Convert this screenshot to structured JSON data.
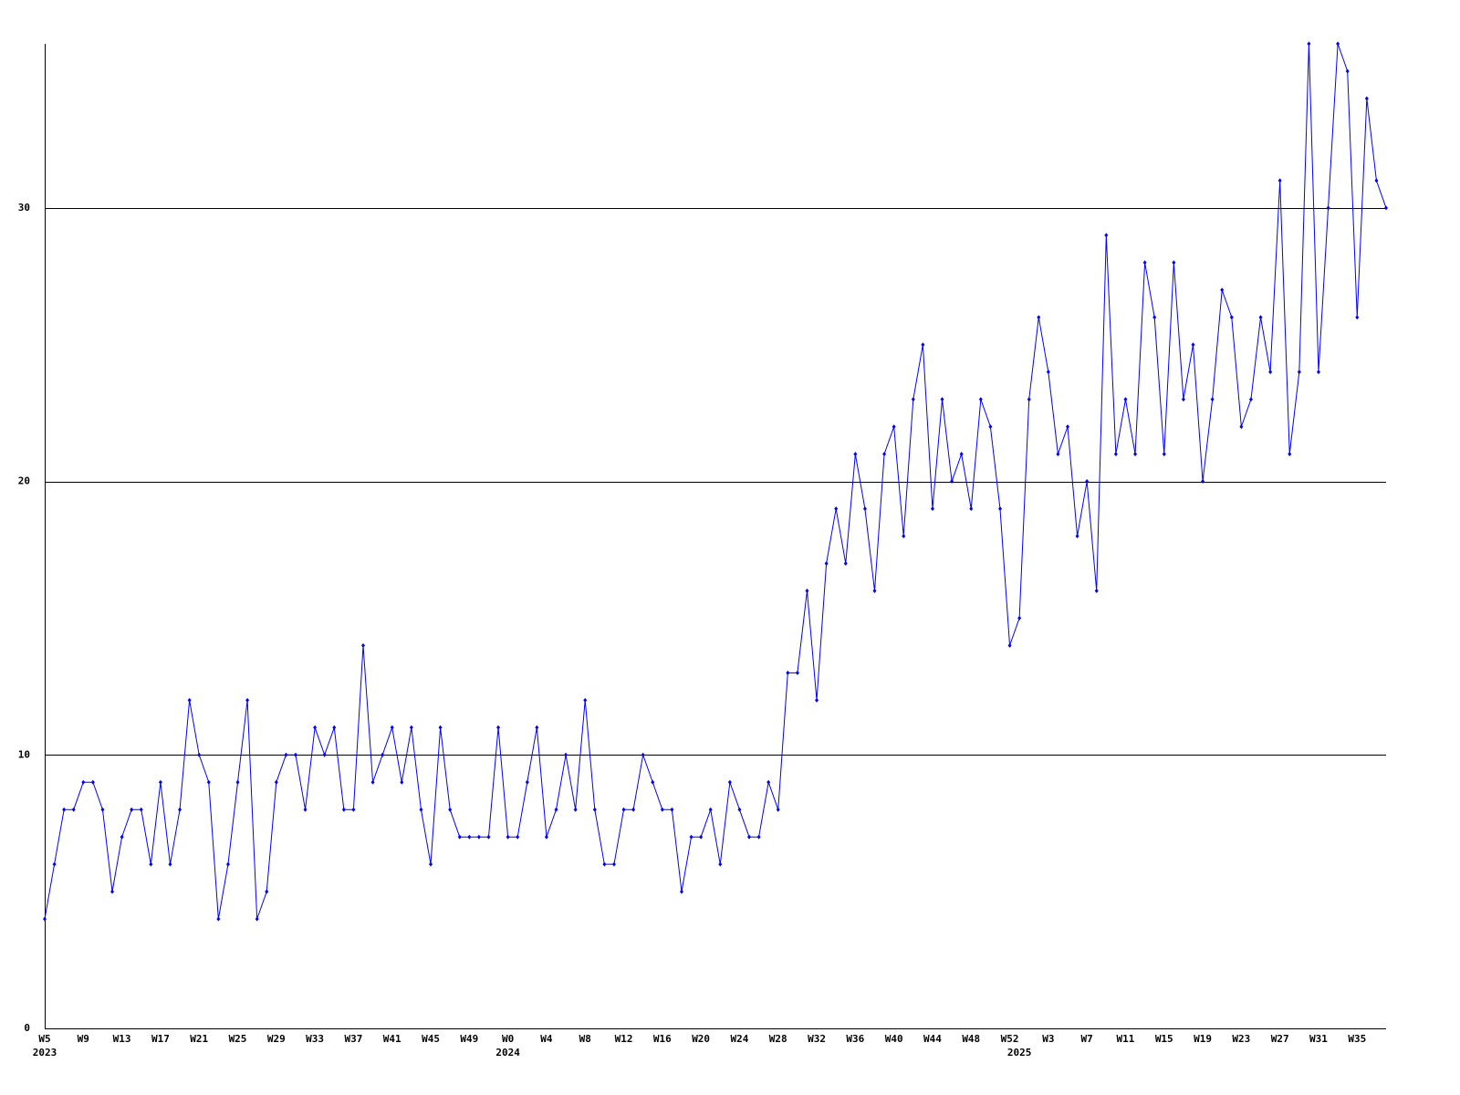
{
  "chart_data": {
    "type": "line",
    "color": "#0000ff",
    "grid": true,
    "ylim": [
      0,
      36
    ],
    "yticks": [
      0,
      10,
      20,
      30
    ],
    "categories": [
      "W5",
      null,
      null,
      null,
      "W9",
      null,
      null,
      null,
      "W13",
      null,
      null,
      null,
      "W17",
      null,
      null,
      null,
      "W21",
      null,
      null,
      null,
      "W25",
      null,
      null,
      null,
      "W29",
      null,
      null,
      null,
      "W33",
      null,
      null,
      null,
      "W37",
      null,
      null,
      null,
      "W41",
      null,
      null,
      null,
      "W45",
      null,
      null,
      null,
      "W49",
      null,
      null,
      null,
      "W0",
      null,
      null,
      null,
      "W4",
      null,
      null,
      null,
      "W8",
      null,
      null,
      null,
      "W12",
      null,
      null,
      null,
      "W16",
      null,
      null,
      null,
      "W20",
      null,
      null,
      null,
      "W24",
      null,
      null,
      null,
      "W28",
      null,
      null,
      null,
      "W32",
      null,
      null,
      null,
      "W36",
      null,
      null,
      null,
      "W40",
      null,
      null,
      null,
      "W44",
      null,
      null,
      null,
      "W48",
      null,
      null,
      null,
      "W52",
      null,
      null,
      null,
      "W3",
      null,
      null,
      null,
      "W7",
      null,
      null,
      null,
      "W11",
      null,
      null,
      null,
      "W15",
      null,
      null,
      null,
      "W19",
      null,
      null,
      null,
      "W23",
      null,
      null,
      null,
      "W27",
      null,
      null,
      null,
      "W31",
      null,
      null,
      null,
      "W35",
      null,
      null,
      null
    ],
    "years": [
      "2023",
      null,
      null,
      null,
      null,
      null,
      null,
      null,
      null,
      null,
      null,
      null,
      null,
      null,
      null,
      null,
      null,
      null,
      null,
      null,
      null,
      null,
      null,
      null,
      null,
      null,
      null,
      null,
      null,
      null,
      null,
      null,
      null,
      null,
      null,
      null,
      null,
      null,
      null,
      null,
      null,
      null,
      null,
      null,
      null,
      null,
      null,
      null,
      "2024",
      null,
      null,
      null,
      null,
      null,
      null,
      null,
      null,
      null,
      null,
      null,
      null,
      null,
      null,
      null,
      null,
      null,
      null,
      null,
      null,
      null,
      null,
      null,
      null,
      null,
      null,
      null,
      null,
      null,
      null,
      null,
      null,
      null,
      null,
      null,
      null,
      null,
      null,
      null,
      null,
      null,
      null,
      null,
      null,
      null,
      null,
      null,
      null,
      null,
      null,
      null,
      null,
      "2025",
      null,
      null,
      null,
      null,
      null,
      null,
      null,
      null,
      null,
      null,
      null,
      null,
      null,
      null,
      null,
      null,
      null,
      null,
      null,
      null,
      null,
      null,
      null,
      null,
      null,
      null,
      null,
      null,
      null,
      null,
      null,
      null,
      null,
      null,
      null,
      null,
      null,
      null
    ],
    "values": [
      4,
      6,
      8,
      8,
      9,
      9,
      8,
      5,
      7,
      8,
      8,
      6,
      9,
      6,
      8,
      12,
      10,
      9,
      4,
      6,
      9,
      12,
      4,
      5,
      9,
      10,
      10,
      8,
      11,
      10,
      11,
      8,
      8,
      14,
      9,
      10,
      11,
      9,
      11,
      8,
      6,
      11,
      8,
      7,
      7,
      7,
      7,
      11,
      7,
      7,
      9,
      11,
      7,
      8,
      10,
      8,
      12,
      8,
      6,
      6,
      8,
      8,
      10,
      9,
      8,
      8,
      5,
      7,
      7,
      8,
      6,
      9,
      8,
      7,
      7,
      9,
      8,
      13,
      13,
      16,
      12,
      17,
      19,
      17,
      21,
      19,
      16,
      21,
      22,
      18,
      23,
      25,
      19,
      23,
      20,
      21,
      19,
      23,
      22,
      19,
      14,
      15,
      23,
      26,
      24,
      21,
      22,
      18,
      20,
      16,
      29,
      21,
      23,
      21,
      28,
      26,
      21,
      28,
      23,
      25,
      20,
      23,
      27,
      26,
      22,
      23,
      26,
      24,
      31,
      21,
      24,
      36,
      24,
      30,
      36,
      35,
      26,
      34,
      31,
      30
    ]
  }
}
